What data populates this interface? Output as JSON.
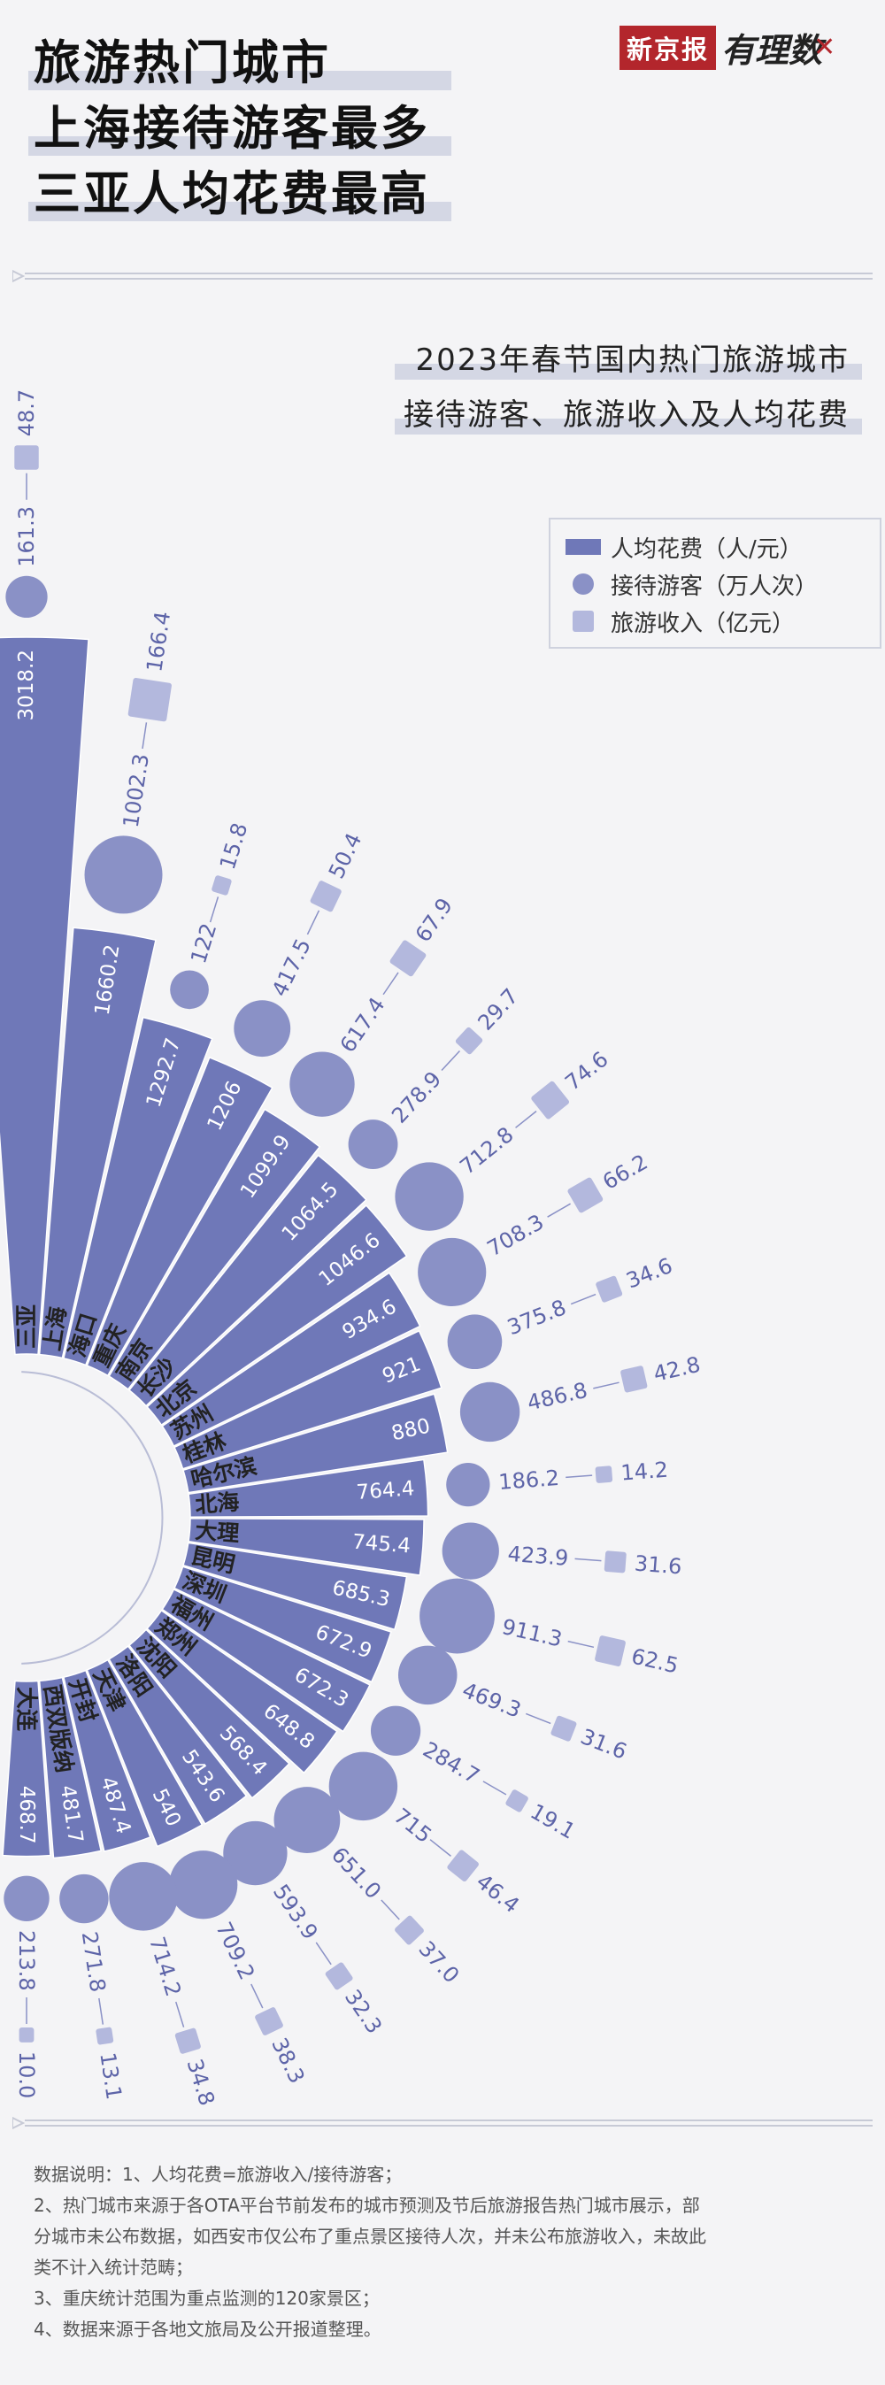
{
  "header": {
    "headline": [
      "旅游热门城市",
      "上海接待游客最多",
      "三亚人均花费最高"
    ],
    "brand_name": "新京报",
    "brand_sub": "有理数"
  },
  "subtitle": [
    "2023年春节国内热门旅游城市",
    "接待游客、旅游收入及人均花费"
  ],
  "legend": [
    {
      "label": "人均花费（人/元）",
      "shape": "bar",
      "color": "#6f78b8"
    },
    {
      "label": "接待游客（万人次）",
      "shape": "circle",
      "color": "#8a91c6"
    },
    {
      "label": "旅游收入（亿元）",
      "shape": "square",
      "color": "#b3b8dd"
    }
  ],
  "notes": [
    "数据说明：1、人均花费=旅游收入/接待游客；",
    "2、热门城市来源于各OTA平台节前发布的城市预测及节后旅游报告热门城市展示，部",
    "分城市未公布数据，如西安市仅公布了重点景区接待人次，并未公布旅游收入，未故此",
    "类不计入统计范畴；",
    "3、重庆统计范围为重点监测的120家景区；",
    "4、数据来源于各地文旅局及公开报道整理。"
  ],
  "chart_data": {
    "type": "radial-bar",
    "title": "2023年春节国内热门旅游城市接待游客、旅游收入及人均花费",
    "categories": [
      "三亚",
      "上海",
      "海口",
      "重庆",
      "南京",
      "长沙",
      "北京",
      "苏州",
      "桂林",
      "哈尔滨",
      "北海",
      "大理",
      "昆明",
      "深圳",
      "福州",
      "郑州",
      "沈阳",
      "洛阳",
      "天津",
      "开封",
      "西双版纳",
      "大连"
    ],
    "series": [
      {
        "name": "人均花费（人/元）",
        "labels": [
          "3018.2",
          "1660.2",
          "1292.7",
          "1206",
          "1099.9",
          "1064.5",
          "1046.6",
          "934.6",
          "921",
          "880",
          "764.4",
          "745.4",
          "685.3",
          "672.9",
          "672.3",
          "648.8",
          "568.4",
          "543.6",
          "540",
          "487.4",
          "481.7",
          "468.7"
        ],
        "values": [
          3018.2,
          1660.2,
          1292.7,
          1206,
          1099.9,
          1064.5,
          1046.6,
          934.6,
          921,
          880,
          764.4,
          745.4,
          685.3,
          672.9,
          672.3,
          648.8,
          568.4,
          543.6,
          540,
          487.4,
          481.7,
          468.7
        ]
      },
      {
        "name": "接待游客（万人次）",
        "labels": [
          "161.3",
          "1002.3",
          "122",
          "417.5",
          "617.4",
          "278.9",
          "712.8",
          "708.3",
          "375.8",
          "486.8",
          "186.2",
          "423.9",
          "911.3",
          "469.3",
          "284.7",
          "715",
          "651.0",
          "593.9",
          "709.2",
          "714.2",
          "271.8",
          "213.8"
        ],
        "values": [
          161.3,
          1002.3,
          122,
          417.5,
          617.4,
          278.9,
          712.8,
          708.3,
          375.8,
          486.8,
          186.2,
          423.9,
          911.3,
          469.3,
          284.7,
          715,
          651.0,
          593.9,
          709.2,
          714.2,
          271.8,
          213.8
        ]
      },
      {
        "name": "旅游收入（亿元）",
        "labels": [
          "48.7",
          "166.4",
          "15.8",
          "50.4",
          "67.9",
          "29.7",
          "74.6",
          "66.2",
          "34.6",
          "42.8",
          "14.2",
          "31.6",
          "62.5",
          "31.6",
          "19.1",
          "46.4",
          "37.0",
          "32.3",
          "38.3",
          "34.8",
          "13.1",
          "10.0"
        ],
        "values": [
          48.7,
          166.4,
          15.8,
          50.4,
          67.9,
          29.7,
          74.6,
          66.2,
          34.6,
          42.8,
          14.2,
          31.6,
          62.5,
          31.6,
          19.1,
          46.4,
          37.0,
          32.3,
          38.3,
          34.8,
          13.1,
          10.0
        ]
      }
    ],
    "colors": {
      "bar": "#6f78b8",
      "circle": "#8a91c6",
      "square": "#b3b8dd",
      "label": "#5d64a8"
    }
  }
}
